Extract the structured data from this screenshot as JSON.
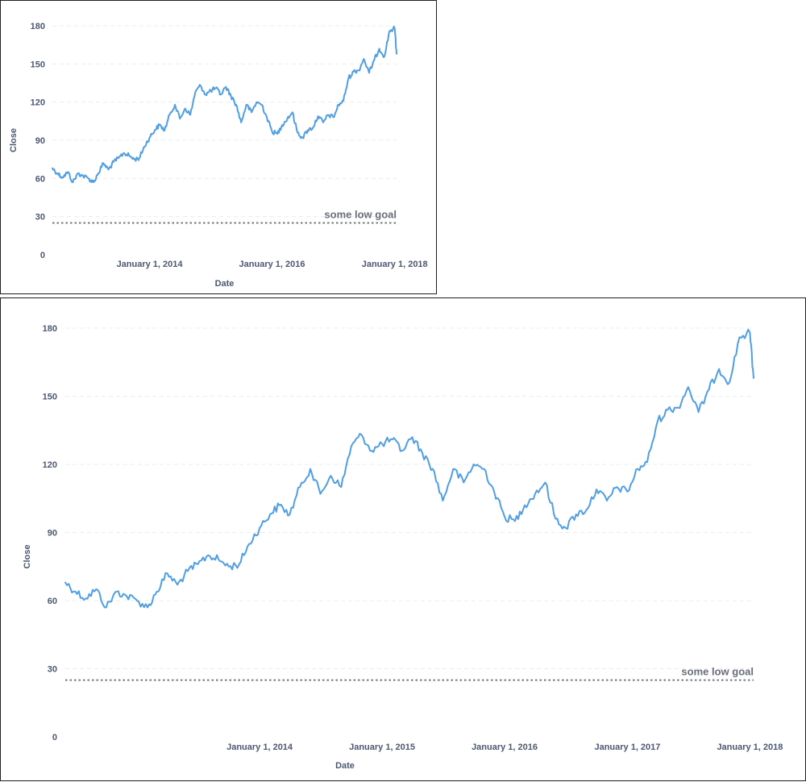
{
  "chart_data": [
    {
      "type": "line",
      "xlabel": "Date",
      "ylabel": "Close",
      "ylim": [
        0,
        180
      ],
      "y_ticks": [
        0,
        30,
        60,
        90,
        120,
        150,
        180
      ],
      "x_range": [
        "2012-06-01",
        "2018-01-12"
      ],
      "x_ticks": [
        {
          "date": "2014-01-01",
          "label": "January 1, 2014"
        },
        {
          "date": "2016-01-01",
          "label": "January 1, 2016"
        },
        {
          "date": "2018-01-01",
          "label": "January 1, 2018"
        }
      ],
      "grid": true,
      "color": "#509ee3",
      "goal": {
        "value": 25,
        "label": "some low goal"
      },
      "series": [
        {
          "x": [
            "2012-06-01",
            "2012-07-01",
            "2012-08-01",
            "2012-09-01",
            "2012-10-01",
            "2012-11-01",
            "2012-12-01",
            "2013-01-01",
            "2013-02-01",
            "2013-03-01",
            "2013-04-01",
            "2013-05-01",
            "2013-06-01",
            "2013-07-01",
            "2013-08-01",
            "2013-09-01",
            "2013-10-01",
            "2013-11-01",
            "2013-12-01",
            "2014-01-01",
            "2014-02-01",
            "2014-03-01",
            "2014-04-01",
            "2014-05-01",
            "2014-06-01",
            "2014-07-01",
            "2014-08-01",
            "2014-09-01",
            "2014-10-01",
            "2014-11-01",
            "2014-12-01",
            "2015-01-01",
            "2015-02-01",
            "2015-03-01",
            "2015-04-01",
            "2015-05-01",
            "2015-06-01",
            "2015-07-01",
            "2015-08-01",
            "2015-09-01",
            "2015-10-01",
            "2015-11-01",
            "2015-12-01",
            "2016-01-01",
            "2016-02-01",
            "2016-03-01",
            "2016-04-01",
            "2016-05-01",
            "2016-06-01",
            "2016-07-01",
            "2016-08-01",
            "2016-09-01",
            "2016-10-01",
            "2016-11-01",
            "2016-12-01",
            "2017-01-01",
            "2017-02-01",
            "2017-03-01",
            "2017-04-01",
            "2017-05-01",
            "2017-06-01",
            "2017-07-01",
            "2017-08-01",
            "2017-09-01",
            "2017-10-01",
            "2017-11-01",
            "2017-12-01",
            "2018-01-01",
            "2018-01-12"
          ],
          "y": [
            68,
            64,
            61,
            65,
            57,
            64,
            62,
            60,
            57,
            64,
            72,
            67,
            73,
            76,
            80,
            78,
            75,
            76,
            85,
            92,
            98,
            102,
            98,
            110,
            118,
            107,
            115,
            110,
            128,
            133,
            126,
            129,
            131,
            126,
            132,
            125,
            118,
            104,
            118,
            112,
            120,
            118,
            108,
            97,
            95,
            102,
            107,
            112,
            96,
            92,
            98,
            100,
            109,
            104,
            110,
            108,
            118,
            121,
            139,
            144,
            145,
            154,
            143,
            153,
            162,
            156,
            176,
            178,
            158
          ]
        }
      ]
    },
    {
      "type": "line",
      "xlabel": "Date",
      "ylabel": "Close",
      "ylim": [
        0,
        180
      ],
      "y_ticks": [
        0,
        30,
        60,
        90,
        120,
        150,
        180
      ],
      "x_range": [
        "2012-06-01",
        "2018-01-12"
      ],
      "x_ticks": [
        {
          "date": "2014-01-01",
          "label": "January 1, 2014"
        },
        {
          "date": "2015-01-01",
          "label": "January 1, 2015"
        },
        {
          "date": "2016-01-01",
          "label": "January 1, 2016"
        },
        {
          "date": "2017-01-01",
          "label": "January 1, 2017"
        },
        {
          "date": "2018-01-01",
          "label": "January 1, 2018"
        }
      ],
      "grid": true,
      "color": "#509ee3",
      "goal": {
        "value": 25,
        "label": "some low goal"
      },
      "series": [
        {
          "x": [
            "2012-06-01",
            "2012-07-01",
            "2012-08-01",
            "2012-09-01",
            "2012-10-01",
            "2012-11-01",
            "2012-12-01",
            "2013-01-01",
            "2013-02-01",
            "2013-03-01",
            "2013-04-01",
            "2013-05-01",
            "2013-06-01",
            "2013-07-01",
            "2013-08-01",
            "2013-09-01",
            "2013-10-01",
            "2013-11-01",
            "2013-12-01",
            "2014-01-01",
            "2014-02-01",
            "2014-03-01",
            "2014-04-01",
            "2014-05-01",
            "2014-06-01",
            "2014-07-01",
            "2014-08-01",
            "2014-09-01",
            "2014-10-01",
            "2014-11-01",
            "2014-12-01",
            "2015-01-01",
            "2015-02-01",
            "2015-03-01",
            "2015-04-01",
            "2015-05-01",
            "2015-06-01",
            "2015-07-01",
            "2015-08-01",
            "2015-09-01",
            "2015-10-01",
            "2015-11-01",
            "2015-12-01",
            "2016-01-01",
            "2016-02-01",
            "2016-03-01",
            "2016-04-01",
            "2016-05-01",
            "2016-06-01",
            "2016-07-01",
            "2016-08-01",
            "2016-09-01",
            "2016-10-01",
            "2016-11-01",
            "2016-12-01",
            "2017-01-01",
            "2017-02-01",
            "2017-03-01",
            "2017-04-01",
            "2017-05-01",
            "2017-06-01",
            "2017-07-01",
            "2017-08-01",
            "2017-09-01",
            "2017-10-01",
            "2017-11-01",
            "2017-12-01",
            "2018-01-01",
            "2018-01-12"
          ],
          "y": [
            68,
            64,
            61,
            65,
            57,
            64,
            62,
            60,
            57,
            64,
            72,
            67,
            73,
            76,
            80,
            78,
            75,
            76,
            85,
            92,
            98,
            102,
            98,
            110,
            118,
            107,
            115,
            110,
            128,
            133,
            126,
            129,
            131,
            126,
            132,
            125,
            118,
            104,
            118,
            112,
            120,
            118,
            108,
            97,
            95,
            102,
            107,
            112,
            96,
            92,
            98,
            100,
            109,
            104,
            110,
            108,
            118,
            121,
            139,
            144,
            145,
            154,
            143,
            153,
            162,
            156,
            176,
            178,
            158
          ]
        }
      ]
    }
  ]
}
